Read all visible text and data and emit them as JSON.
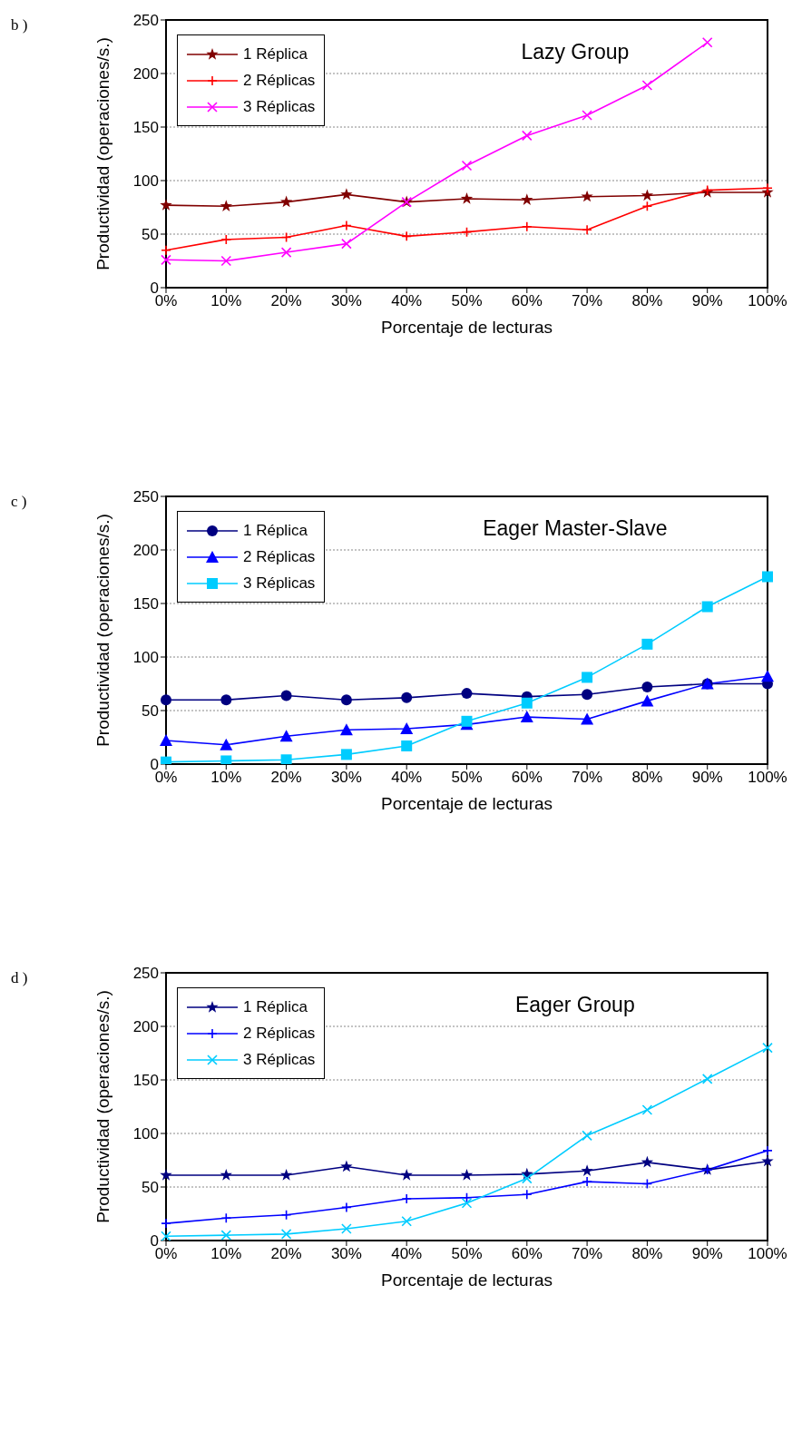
{
  "chart_data": [
    {
      "type": "line",
      "title": "Lazy Group",
      "xlabel": "Porcentaje de lecturas",
      "ylabel": "Productividad (operaciones/s.)",
      "annotations": [
        "b )"
      ],
      "categories": [
        "0%",
        "10%",
        "20%",
        "30%",
        "40%",
        "50%",
        "60%",
        "70%",
        "80%",
        "90%",
        "100%"
      ],
      "ylim": [
        0,
        250
      ],
      "yticks": [
        0,
        50,
        100,
        150,
        200,
        250
      ],
      "grid": "y",
      "legend": "top left",
      "line_style": "solid",
      "series": [
        {
          "name": "1 Réplica",
          "color": "#800000",
          "marker": "star",
          "values": [
            77,
            76,
            80,
            87,
            80,
            83,
            82,
            85,
            86,
            89,
            89
          ]
        },
        {
          "name": "2 Réplicas",
          "color": "#ff0000",
          "marker": "plus",
          "values": [
            35,
            45,
            47,
            58,
            48,
            52,
            57,
            54,
            76,
            91,
            93
          ]
        },
        {
          "name": "3 Réplicas",
          "color": "#ff00ff",
          "marker": "cross",
          "values": [
            26,
            25,
            33,
            41,
            80,
            114,
            142,
            161,
            189,
            229,
            null
          ]
        }
      ]
    },
    {
      "type": "line",
      "title": "Eager Master-Slave",
      "xlabel": "Porcentaje de lecturas",
      "ylabel": "Productividad (operaciones/s.)",
      "annotations": [
        "c )"
      ],
      "categories": [
        "0%",
        "10%",
        "20%",
        "30%",
        "40%",
        "50%",
        "60%",
        "70%",
        "80%",
        "90%",
        "100%"
      ],
      "ylim": [
        0,
        250
      ],
      "yticks": [
        0,
        50,
        100,
        150,
        200,
        250
      ],
      "grid": "y",
      "legend": "top left",
      "line_style": "solid",
      "series": [
        {
          "name": "1 Réplica",
          "color": "#000080",
          "marker": "circle",
          "values": [
            60,
            60,
            64,
            60,
            62,
            66,
            63,
            65,
            72,
            75,
            75
          ]
        },
        {
          "name": "2 Réplicas",
          "color": "#0000ff",
          "marker": "triangle",
          "values": [
            22,
            18,
            26,
            32,
            33,
            37,
            44,
            42,
            59,
            75,
            82
          ]
        },
        {
          "name": "3 Réplicas",
          "color": "#00ccff",
          "marker": "square",
          "values": [
            2,
            3,
            4,
            9,
            17,
            40,
            57,
            81,
            112,
            147,
            175
          ]
        }
      ]
    },
    {
      "type": "line",
      "title": "Eager Group",
      "xlabel": "Porcentaje de lecturas",
      "ylabel": "Productividad (operaciones/s.)",
      "annotations": [
        "d )"
      ],
      "categories": [
        "0%",
        "10%",
        "20%",
        "30%",
        "40%",
        "50%",
        "60%",
        "70%",
        "80%",
        "90%",
        "100%"
      ],
      "ylim": [
        0,
        250
      ],
      "yticks": [
        0,
        50,
        100,
        150,
        200,
        250
      ],
      "grid": "y",
      "legend": "top left",
      "line_style": "solid",
      "series": [
        {
          "name": "1 Réplica",
          "color": "#000080",
          "marker": "star",
          "values": [
            61,
            61,
            61,
            69,
            61,
            61,
            62,
            65,
            73,
            66,
            74
          ]
        },
        {
          "name": "2 Réplicas",
          "color": "#0000ff",
          "marker": "plus",
          "values": [
            16,
            21,
            24,
            31,
            39,
            40,
            43,
            55,
            53,
            66,
            84
          ]
        },
        {
          "name": "3 Réplicas",
          "color": "#00ccff",
          "marker": "cross",
          "values": [
            4,
            5,
            6,
            11,
            18,
            35,
            58,
            98,
            122,
            151,
            180
          ]
        }
      ]
    }
  ]
}
